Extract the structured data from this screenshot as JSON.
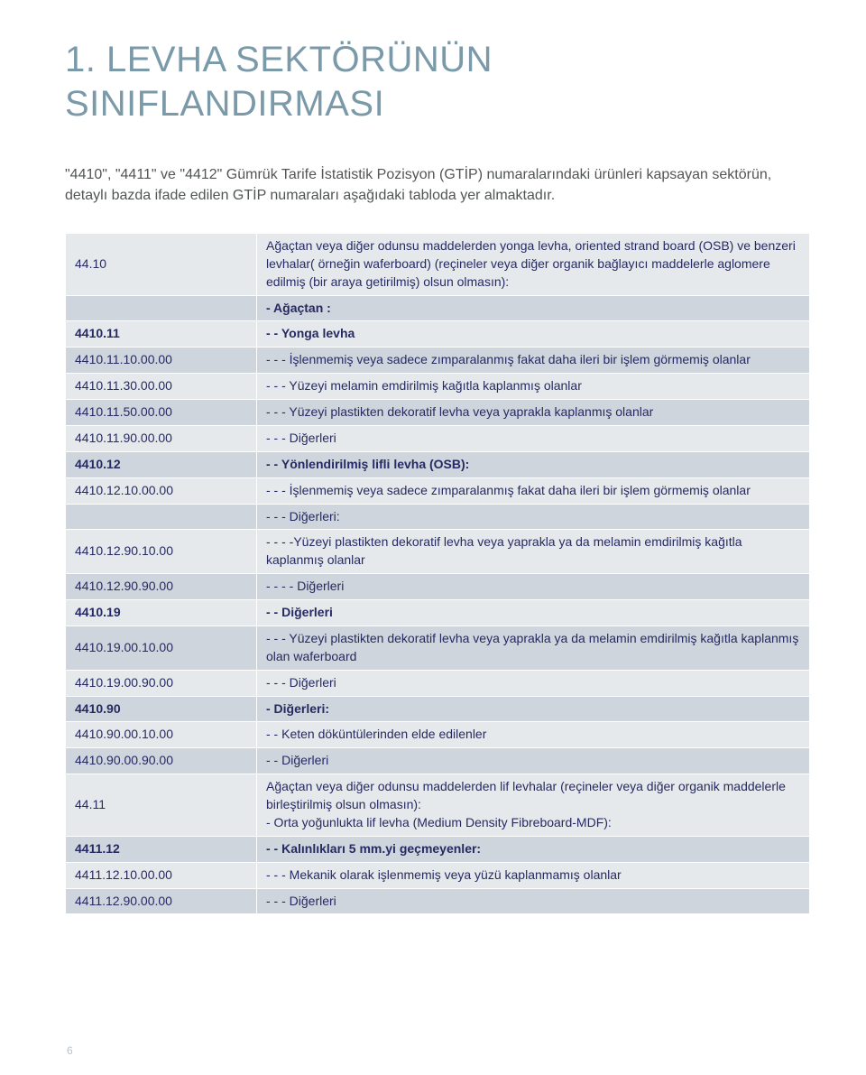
{
  "heading": "1. LEVHA SEKTÖRÜNÜN SINIFLANDIRMASI",
  "intro": "\"4410\", \"4411\" ve \"4412\" Gümrük Tarife İstatistik Pozisyon (GTİP) numaralarındaki ürünleri kapsayan sektörün, detaylı bazda ifade edilen GTİP numaraları aşağıdaki tabloda yer almaktadır.",
  "colors": {
    "band_a": "#e6e9ec",
    "band_b": "#ced5dc",
    "text": "#262a62",
    "heading": "#7b9aa9",
    "body_text": "#515556"
  },
  "rows": [
    {
      "code": "44.10",
      "desc": " Ağaçtan veya diğer odunsu maddelerden yonga levha,  oriented strand board (OSB)  ve  benzeri levhalar( örneğin waferboard) (reçineler veya diğer organik bağlayıcı maddelerle aglomere edilmiş (bir araya getirilmiş) olsun olmasın):",
      "band": "a",
      "bold": false
    },
    {
      "code": "",
      "desc": " - Ağaçtan :",
      "band": "b",
      "bold": true
    },
    {
      "code": " 4410.11",
      "desc": " - - Yonga levha",
      "band": "a",
      "bold": true
    },
    {
      "code": "4410.11.10.00.00",
      "desc": " - - - İşlenmemiş veya sadece zımparalanmış fakat daha ileri bir işlem görmemiş olanlar",
      "band": "b",
      "bold": false
    },
    {
      "code": "4410.11.30.00.00",
      "desc": " - - - Yüzeyi melamin emdirilmiş kağıtla kaplanmış olanlar",
      "band": "a",
      "bold": false
    },
    {
      "code": "4410.11.50.00.00",
      "desc": " - - - Yüzeyi  plastikten dekoratif levha veya yaprakla kaplanmış olanlar",
      "band": "b",
      "bold": false
    },
    {
      "code": "4410.11.90.00.00",
      "desc": " - - - Diğerleri",
      "band": "a",
      "bold": false
    },
    {
      "code": " 4410.12",
      "desc": " - - Yönlendirilmiş lifli levha (OSB):",
      "band": "b",
      "bold": true
    },
    {
      "code": "4410.12.10.00.00",
      "desc": " - - - İşlenmemiş veya sadece zımparalanmış fakat daha ileri bir işlem görmemiş olanlar",
      "band": "a",
      "bold": false
    },
    {
      "code": "",
      "desc": " - - - Diğerleri:",
      "band": "b",
      "bold": false
    },
    {
      "code": "4410.12.90.10.00",
      "desc": " - - - -Yüzeyi  plastikten dekoratif levha veya yaprakla ya da melamin emdirilmiş kağıtla kaplanmış olanlar",
      "band": "a",
      "bold": false
    },
    {
      "code": "4410.12.90.90.00",
      "desc": " - - - - Diğerleri",
      "band": "b",
      "bold": false
    },
    {
      "code": " 4410.19",
      "desc": " - - Diğerleri",
      "band": "a",
      "bold": true
    },
    {
      "code": "4410.19.00.10.00",
      "desc": " - - -  Yüzeyi  plastikten dekoratif levha veya yaprakla ya da melamin emdirilmiş kağıtla kaplanmış olan waferboard",
      "band": "b",
      "bold": false
    },
    {
      "code": "4410.19.00.90.00",
      "desc": " - - - Diğerleri",
      "band": "a",
      "bold": false
    },
    {
      "code": "4410.90",
      "desc": " - Diğerleri:",
      "band": "b",
      "bold": true
    },
    {
      "code": "4410.90.00.10.00",
      "desc": " - - Keten döküntülerinden elde edilenler",
      "band": "a",
      "bold": false
    },
    {
      "code": "4410.90.00.90.00",
      "desc": " - - Diğerleri",
      "band": "b",
      "bold": false
    },
    {
      "code": "44.11",
      "desc": "Ağaçtan veya diğer odunsu maddelerden lif levhalar (reçineler veya diğer organik maddelerle birleştirilmiş olsun olmasın):\n - Orta yoğunlukta lif levha (Medium Density Fibreboard-MDF):",
      "band": "a",
      "bold": false
    },
    {
      "code": " 4411.12",
      "desc": " - - Kalınlıkları 5 mm.yi geçmeyenler:",
      "band": "b",
      "bold": true
    },
    {
      "code": "4411.12.10.00.00",
      "desc": " - - - Mekanik olarak işlenmemiş veya yüzü kaplanmamış olanlar",
      "band": "a",
      "bold": false
    },
    {
      "code": "4411.12.90.00.00",
      "desc": " - - - Diğerleri",
      "band": "b",
      "bold": false
    }
  ],
  "page_number": "6"
}
